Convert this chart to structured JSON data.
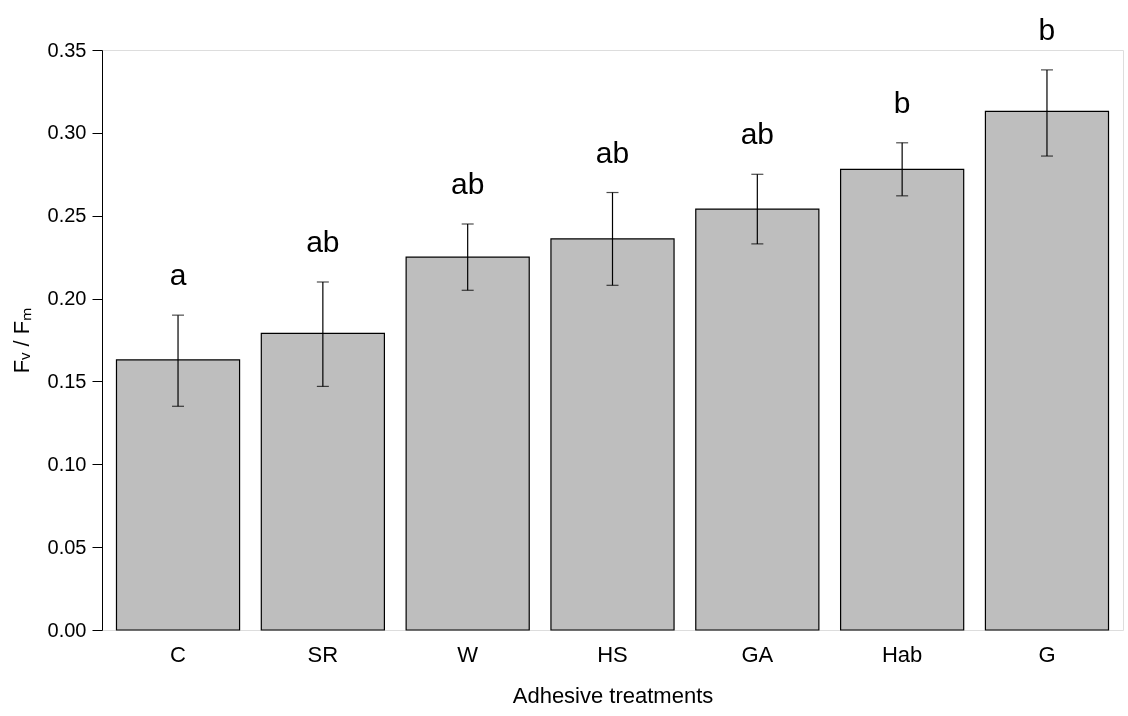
{
  "chart_data": {
    "type": "bar",
    "xlabel": "Adhesive treatments",
    "ylabel": "Fᵥ / Fₘ",
    "categories": [
      "C",
      "SR",
      "W",
      "HS",
      "GA",
      "Hab",
      "G"
    ],
    "values": [
      0.163,
      0.179,
      0.225,
      0.236,
      0.254,
      0.278,
      0.313
    ],
    "color": "#bebebe",
    "errors": [
      [
        0.135,
        0.19
      ],
      [
        0.147,
        0.21
      ],
      [
        0.205,
        0.245
      ],
      [
        0.208,
        0.264
      ],
      [
        0.233,
        0.275
      ],
      [
        0.262,
        0.294
      ],
      [
        0.286,
        0.338
      ]
    ],
    "ylim": [
      0,
      0.35
    ],
    "yticks": [
      {
        "value": 0,
        "label": "0.00"
      },
      {
        "value": 0.05,
        "label": "0.05"
      },
      {
        "value": 0.1,
        "label": "0.10"
      },
      {
        "value": 0.15,
        "label": "0.15"
      },
      {
        "value": 0.2,
        "label": "0.20"
      },
      {
        "value": 0.25,
        "label": "0.25"
      },
      {
        "value": 0.3,
        "label": "0.30"
      },
      {
        "value": 0.35,
        "label": "0.35"
      }
    ],
    "grid": false,
    "annotations": [
      {
        "text": "a",
        "x": "C",
        "y": 0.19
      },
      {
        "text": "ab",
        "x": "SR",
        "y": 0.21
      },
      {
        "text": "ab",
        "x": "W",
        "y": 0.245
      },
      {
        "text": "ab",
        "x": "HS",
        "y": 0.264
      },
      {
        "text": "ab",
        "x": "GA",
        "y": 0.275
      },
      {
        "text": "b",
        "x": "Hab",
        "y": 0.294
      },
      {
        "text": "b",
        "x": "G",
        "y": 0.338
      }
    ]
  }
}
